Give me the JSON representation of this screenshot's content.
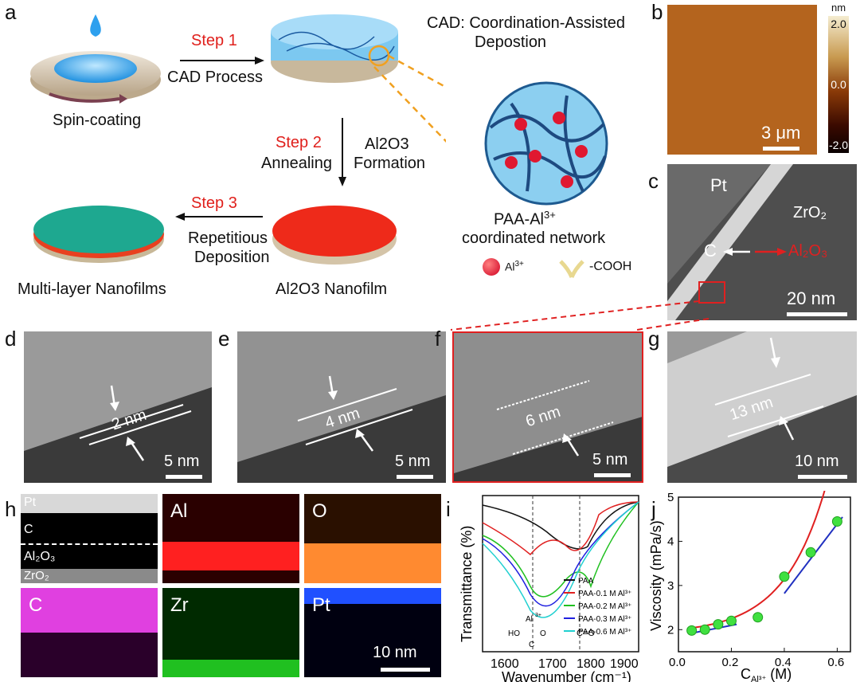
{
  "panels": {
    "a": "a",
    "b": "b",
    "c": "c",
    "d": "d",
    "e": "e",
    "f": "f",
    "g": "g",
    "h": "h",
    "i": "i",
    "j": "j"
  },
  "schematic": {
    "spin_coating": "Spin-coating",
    "step1": "Step 1",
    "cad_process": "CAD Process",
    "cad_title_line1": "CAD: Coordination-Assisted",
    "cad_title_line2": "Depostion",
    "step2": "Step 2",
    "annealing": "Annealing",
    "al2o3_formation_line1": "Al2O3",
    "al2o3_formation_line2": "Formation",
    "step3": "Step 3",
    "repetitious": "Repetitious",
    "deposition": "Deposition",
    "multilayer": "Multi-layer Nanofilms",
    "al2o3_nanofilm": "Al2O3 Nanofilm",
    "network_line1": "PAA-Al",
    "network_sup": "3+",
    "network_line2": "coordinated network",
    "legend_al": "Al",
    "legend_al_sup": "3+",
    "legend_cooh": "-COOH"
  },
  "afm": {
    "unit": "nm",
    "ticks": [
      "2.0",
      "0.0",
      "-2.0"
    ],
    "scalebar": "3 μm",
    "colors": {
      "high": "#f4ecd0",
      "mid": "#8a3a08",
      "low": "#0a0000",
      "surface": "#b4641e"
    }
  },
  "tem_c": {
    "pt": "Pt",
    "c": "C",
    "al2o3": "Al₂O₃",
    "zro2": "ZrO₂",
    "scalebar": "20 nm"
  },
  "tem_d": {
    "thickness": "2 nm",
    "scalebar": "5 nm"
  },
  "tem_e": {
    "thickness": "4 nm",
    "scalebar": "5 nm"
  },
  "tem_f": {
    "thickness": "6 nm",
    "scalebar": "5 nm"
  },
  "tem_g": {
    "thickness": "13 nm",
    "scalebar": "10 nm"
  },
  "eds": {
    "layers": [
      "Pt",
      "C",
      "Al₂O₃",
      "ZrO₂"
    ],
    "maps": [
      {
        "label": "Al",
        "color": "#ff2020"
      },
      {
        "label": "O",
        "color": "#ff8a30"
      },
      {
        "label": "C",
        "color": "#e040e0"
      },
      {
        "label": "Zr",
        "color": "#20c020"
      },
      {
        "label": "Pt",
        "color": "#2050ff"
      }
    ],
    "scalebar": "10 nm"
  },
  "ftir": {
    "ylabel": "Transmittance (%)",
    "xlabel": "Wavenumber (cm⁻¹)",
    "xticks": [
      "1600",
      "1700",
      "1800",
      "1900"
    ],
    "annot_al": "Al",
    "annot_al_sup": "3+",
    "annot_ho": "HO",
    "annot_c": "C",
    "annot_o": "O",
    "annot_co": "C=O",
    "legend": [
      "PAA",
      "PAA-0.1 M Al³⁺",
      "PAA-0.2 M Al³⁺",
      "PAA-0.3 M Al³⁺",
      "PAA-0.6 M Al³⁺"
    ],
    "colors": [
      "#111111",
      "#e02020",
      "#20c020",
      "#2020e0",
      "#20d0d0"
    ]
  },
  "chart_data": {
    "type": "scatter",
    "xlabel": "C",
    "xlabel_sub": "Al³⁺",
    "xlabel_unit": " (M)",
    "ylabel": "Viscosity (mPa/s)",
    "xlim": [
      0,
      0.65
    ],
    "ylim": [
      1.5,
      5
    ],
    "xticks": [
      "0.0",
      "0.2",
      "0.4",
      "0.6"
    ],
    "yticks": [
      "2",
      "3",
      "4",
      "5"
    ],
    "x": [
      0.05,
      0.1,
      0.15,
      0.2,
      0.3,
      0.4,
      0.5,
      0.6
    ],
    "values": [
      1.98,
      2.0,
      2.12,
      2.2,
      2.28,
      3.2,
      3.75,
      4.45
    ],
    "fit_exponential_color": "#e02020",
    "fit_linear_color": "#2030c0"
  }
}
